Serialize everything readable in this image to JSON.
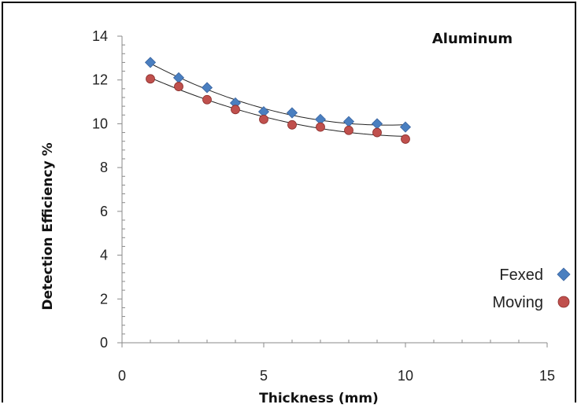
{
  "chart_data": {
    "type": "scatter",
    "title": "Aluminum",
    "xlabel": "Thickness (mm)",
    "ylabel": "Detection Efficiency %",
    "xlim": [
      0,
      15
    ],
    "ylim": [
      0,
      14
    ],
    "xticks": [
      "0",
      "5",
      "10",
      "15"
    ],
    "yticks": [
      "0",
      "2",
      "4",
      "6",
      "8",
      "10",
      "12",
      "14"
    ],
    "grid": false,
    "legend_position": "right",
    "series": [
      {
        "name": "Fexed",
        "marker": "diamond",
        "color": "#4a7fc0",
        "x": [
          1,
          2,
          3,
          4,
          5,
          6,
          7,
          8,
          9,
          10
        ],
        "y": [
          12.8,
          12.1,
          11.65,
          10.95,
          10.55,
          10.5,
          10.2,
          10.1,
          10.0,
          9.85
        ]
      },
      {
        "name": "Moving",
        "marker": "circle",
        "color": "#c0504d",
        "x": [
          1,
          2,
          3,
          4,
          5,
          6,
          7,
          8,
          9,
          10
        ],
        "y": [
          12.05,
          11.7,
          11.1,
          10.65,
          10.2,
          9.95,
          9.85,
          9.7,
          9.6,
          9.3
        ]
      }
    ]
  }
}
